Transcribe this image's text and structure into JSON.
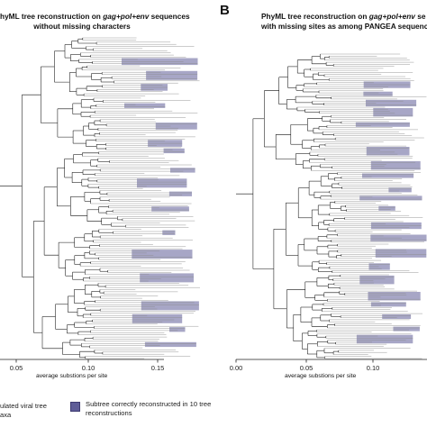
{
  "panel_a": {
    "title_parts": [
      "hyML tree reconstruction on ",
      "gag+pol+env",
      " sequences"
    ],
    "title_line2": "without missing characters",
    "axis_label": "average substions per site",
    "ticks": [
      "0.05",
      "0.10",
      "0.15"
    ]
  },
  "panel_b": {
    "letter": "B",
    "title_parts": [
      "PhyML tree reconstruction on ",
      "gag+pol+env",
      " se"
    ],
    "title_line2": "with missing sites as among PANGEA sequences t",
    "axis_label": "average substions per site",
    "ticks": [
      "0.00",
      "0.05",
      "0.10"
    ]
  },
  "legend": {
    "item1_line1": "ulated viral tree",
    "item1_line2": "axa",
    "item2_line1": "Subtree correctly reconstructed in 10 tree",
    "item2_line2": "reconstructions"
  },
  "colors": {
    "subtree_fill": "#5e5c97",
    "branch": "#8d8d8d",
    "tree_line": "#111111",
    "axis": "#222222"
  }
}
